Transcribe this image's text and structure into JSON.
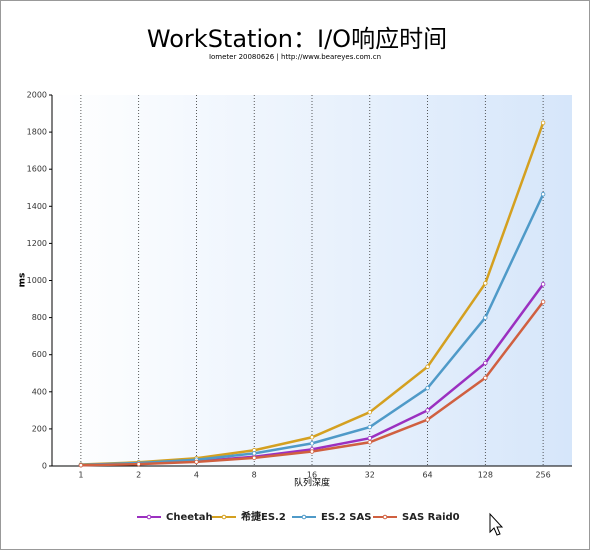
{
  "chart_data": {
    "type": "line",
    "title": "WorkStation：I/O响应时间",
    "subtitle": "Iometer 20080626 | http://www.beareyes.com.cn",
    "y_label": "ms",
    "x_label": "队列深度",
    "categories": [
      "1",
      "2",
      "4",
      "8",
      "16",
      "32",
      "64",
      "128",
      "256"
    ],
    "series": [
      {
        "name": "Cheetah",
        "color": "#9b30c0",
        "values": [
          5,
          12,
          25,
          50,
          90,
          150,
          300,
          555,
          980
        ]
      },
      {
        "name": "希捷ES.2",
        "color": "#d4a020",
        "values": [
          8,
          20,
          42,
          85,
          155,
          290,
          535,
          985,
          1850
        ]
      },
      {
        "name": "ES.2 SAS",
        "color": "#4f9ac8",
        "values": [
          6,
          16,
          34,
          68,
          122,
          210,
          420,
          800,
          1465
        ]
      },
      {
        "name": "SAS Raid0",
        "color": "#d06040",
        "values": [
          4,
          10,
          22,
          44,
          78,
          128,
          250,
          475,
          885
        ]
      }
    ],
    "ylim": [
      0,
      2000
    ],
    "yticks": [
      0,
      200,
      400,
      600,
      800,
      1000,
      1200,
      1400,
      1600,
      1800,
      2000
    ],
    "grid": true
  }
}
